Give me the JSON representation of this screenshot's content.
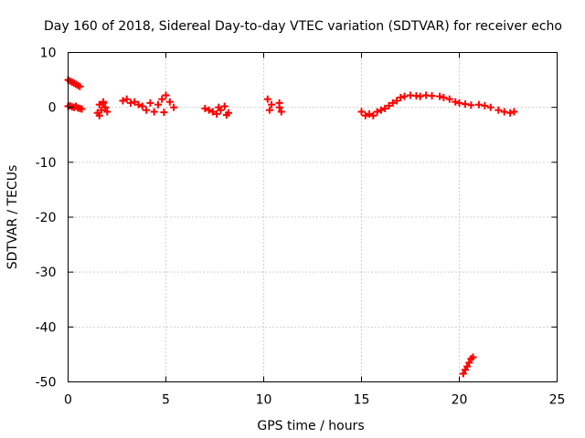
{
  "chart_data": {
    "type": "scatter",
    "title": "Day 160 of 2018, Sidereal Day-to-day VTEC variation (SDTVAR) for receiver echo",
    "xlabel": "GPS time / hours",
    "ylabel": "SDTVAR / TECUs",
    "xlim": [
      0,
      25
    ],
    "ylim": [
      -50,
      10
    ],
    "xticks": [
      0,
      5,
      10,
      15,
      20,
      25
    ],
    "yticks": [
      10,
      0,
      -10,
      -20,
      -30,
      -40,
      -50
    ],
    "grid": true,
    "marker": "plus",
    "series": [
      {
        "name": "SDTVAR",
        "color": "#ff0000",
        "points": [
          [
            0.0,
            5.0
          ],
          [
            0.1,
            4.8
          ],
          [
            0.2,
            4.6
          ],
          [
            0.3,
            4.4
          ],
          [
            0.4,
            4.2
          ],
          [
            0.5,
            4.0
          ],
          [
            0.6,
            3.8
          ],
          [
            0.0,
            0.2
          ],
          [
            0.1,
            0.3
          ],
          [
            0.2,
            0.1
          ],
          [
            0.3,
            0.0
          ],
          [
            0.4,
            0.2
          ],
          [
            0.5,
            -0.1
          ],
          [
            0.6,
            -0.2
          ],
          [
            0.7,
            -0.3
          ],
          [
            1.5,
            -1.0
          ],
          [
            1.6,
            0.5
          ],
          [
            1.7,
            -0.5
          ],
          [
            1.8,
            1.0
          ],
          [
            1.9,
            0.0
          ],
          [
            2.0,
            -0.8
          ],
          [
            1.6,
            -1.5
          ],
          [
            1.8,
            0.8
          ],
          [
            2.8,
            1.2
          ],
          [
            3.0,
            1.5
          ],
          [
            3.2,
            0.8
          ],
          [
            3.4,
            1.0
          ],
          [
            3.6,
            0.5
          ],
          [
            3.8,
            0.2
          ],
          [
            4.0,
            -0.5
          ],
          [
            4.2,
            0.8
          ],
          [
            4.4,
            -0.8
          ],
          [
            4.6,
            0.5
          ],
          [
            4.8,
            1.5
          ],
          [
            5.0,
            2.2
          ],
          [
            5.2,
            1.0
          ],
          [
            5.4,
            0.0
          ],
          [
            4.9,
            -0.9
          ],
          [
            7.0,
            -0.2
          ],
          [
            7.2,
            -0.5
          ],
          [
            7.4,
            -0.8
          ],
          [
            7.6,
            -1.2
          ],
          [
            7.8,
            -0.5
          ],
          [
            8.0,
            0.2
          ],
          [
            8.2,
            -1.0
          ],
          [
            7.7,
            0.0
          ],
          [
            8.1,
            -1.4
          ],
          [
            10.2,
            1.5
          ],
          [
            10.3,
            -0.5
          ],
          [
            10.4,
            0.5
          ],
          [
            10.8,
            0.0
          ],
          [
            10.9,
            -0.8
          ],
          [
            10.8,
            0.8
          ],
          [
            15.0,
            -0.8
          ],
          [
            15.2,
            -1.5
          ],
          [
            15.4,
            -1.2
          ],
          [
            15.6,
            -1.5
          ],
          [
            15.8,
            -0.8
          ],
          [
            16.0,
            -0.5
          ],
          [
            16.2,
            -0.2
          ],
          [
            16.4,
            0.3
          ],
          [
            16.6,
            0.8
          ],
          [
            16.8,
            1.2
          ],
          [
            17.0,
            1.8
          ],
          [
            17.2,
            2.0
          ],
          [
            17.5,
            2.2
          ],
          [
            17.8,
            2.1
          ],
          [
            18.0,
            2.0
          ],
          [
            18.3,
            2.2
          ],
          [
            18.6,
            2.1
          ],
          [
            19.0,
            2.0
          ],
          [
            19.2,
            1.8
          ],
          [
            19.5,
            1.5
          ],
          [
            19.8,
            1.0
          ],
          [
            20.0,
            0.8
          ],
          [
            20.3,
            0.6
          ],
          [
            20.6,
            0.4
          ],
          [
            21.0,
            0.5
          ],
          [
            21.3,
            0.3
          ],
          [
            21.6,
            0.0
          ],
          [
            22.0,
            -0.5
          ],
          [
            22.3,
            -0.8
          ],
          [
            22.6,
            -1.0
          ],
          [
            22.8,
            -0.8
          ],
          [
            20.2,
            -48.5
          ],
          [
            20.3,
            -47.8
          ],
          [
            20.4,
            -47.2
          ],
          [
            20.5,
            -46.5
          ],
          [
            20.6,
            -45.8
          ],
          [
            20.7,
            -45.5
          ]
        ]
      }
    ]
  }
}
